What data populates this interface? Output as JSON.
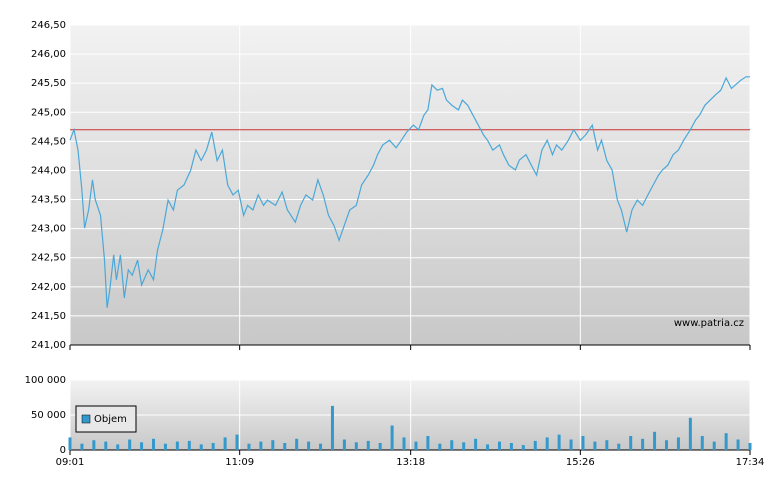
{
  "chart_data": [
    {
      "type": "line",
      "x": [
        541,
        544,
        547,
        550,
        552,
        555,
        558,
        560,
        564,
        567,
        569,
        571,
        574,
        576,
        579,
        582,
        585,
        588,
        592,
        595,
        600,
        604,
        607,
        611,
        615,
        619,
        622,
        627,
        632,
        636,
        640,
        644,
        648,
        652,
        656,
        660,
        664,
        668,
        672,
        675,
        679,
        683,
        687,
        690,
        696,
        701,
        705,
        711,
        715,
        719,
        724,
        728,
        732,
        736,
        740,
        744,
        748,
        752,
        757,
        761,
        766,
        770,
        773,
        777,
        782,
        787,
        791,
        795,
        800,
        804,
        808,
        811,
        814,
        818,
        822,
        825,
        829,
        834,
        837,
        841,
        845,
        849,
        853,
        856,
        860,
        865,
        868,
        872,
        877,
        880,
        885,
        889,
        893,
        897,
        901,
        905,
        908,
        912,
        917,
        921,
        926,
        930,
        935,
        939,
        942,
        946,
        950,
        954,
        957,
        961,
        965,
        969,
        973,
        977,
        981,
        985,
        988,
        992,
        996,
        1000,
        1004,
        1009,
        1013,
        1016,
        1020,
        1024,
        1028,
        1032,
        1036,
        1040,
        1043,
        1047,
        1051,
        1054
      ],
      "values": [
        244.52,
        244.7,
        244.35,
        243.66,
        243.01,
        243.32,
        243.84,
        243.5,
        243.23,
        242.46,
        241.64,
        241.95,
        242.55,
        242.12,
        242.55,
        241.81,
        242.29,
        242.2,
        242.46,
        242.03,
        242.29,
        242.12,
        242.63,
        242.98,
        243.49,
        243.32,
        243.66,
        243.75,
        244.0,
        244.35,
        244.17,
        244.35,
        244.66,
        244.17,
        244.35,
        243.75,
        243.58,
        243.66,
        243.23,
        243.4,
        243.32,
        243.58,
        243.4,
        243.49,
        243.4,
        243.63,
        243.32,
        243.11,
        243.4,
        243.58,
        243.49,
        243.84,
        243.58,
        243.23,
        243.06,
        242.8,
        243.06,
        243.32,
        243.4,
        243.75,
        243.92,
        244.09,
        244.27,
        244.44,
        244.52,
        244.39,
        244.52,
        244.66,
        244.78,
        244.7,
        244.95,
        245.04,
        245.47,
        245.38,
        245.41,
        245.21,
        245.12,
        245.04,
        245.21,
        245.12,
        244.95,
        244.78,
        244.61,
        244.52,
        244.35,
        244.44,
        244.27,
        244.09,
        244.01,
        244.18,
        244.27,
        244.09,
        243.92,
        244.35,
        244.52,
        244.27,
        244.44,
        244.35,
        244.52,
        244.7,
        244.52,
        244.61,
        244.78,
        244.35,
        244.52,
        244.17,
        244.01,
        243.49,
        243.32,
        242.94,
        243.32,
        243.49,
        243.4,
        243.58,
        243.75,
        243.92,
        244.01,
        244.09,
        244.27,
        244.35,
        244.52,
        244.7,
        244.87,
        244.95,
        245.12,
        245.21,
        245.3,
        245.38,
        245.59,
        245.41,
        245.47,
        245.55,
        245.61,
        245.61
      ],
      "color": "#4aa8d8",
      "xlim": [
        541,
        1054
      ],
      "ylim": [
        241,
        246.5
      ],
      "yticks": [
        {
          "value": 241,
          "label": "241,00"
        },
        {
          "value": 241.5,
          "label": "241,50"
        },
        {
          "value": 242,
          "label": "242,00"
        },
        {
          "value": 242.5,
          "label": "242,50"
        },
        {
          "value": 243,
          "label": "243,00"
        },
        {
          "value": 243.5,
          "label": "243,50"
        },
        {
          "value": 244,
          "label": "244,00"
        },
        {
          "value": 244.5,
          "label": "244,50"
        },
        {
          "value": 245,
          "label": "245,00"
        },
        {
          "value": 245.5,
          "label": "245,50"
        },
        {
          "value": 246,
          "label": "246,00"
        },
        {
          "value": 246.5,
          "label": "246,50"
        }
      ],
      "reference_value": 244.7,
      "reference_color": "#cc3333",
      "annotation": "www.patria.cz",
      "grid": true
    },
    {
      "type": "bar",
      "x": [
        541,
        550,
        559,
        568,
        577,
        586,
        595,
        604,
        613,
        622,
        631,
        640,
        649,
        658,
        667,
        676,
        685,
        694,
        703,
        712,
        721,
        730,
        739,
        748,
        757,
        766,
        775,
        784,
        793,
        802,
        811,
        820,
        829,
        838,
        847,
        856,
        865,
        874,
        883,
        892,
        901,
        910,
        919,
        928,
        937,
        946,
        955,
        964,
        973,
        982,
        991,
        1000,
        1009,
        1018,
        1027,
        1036,
        1045,
        1054
      ],
      "series": [
        {
          "name": "Objem",
          "color": "#3399cc",
          "values": [
            18000,
            9000,
            14000,
            12000,
            8000,
            15000,
            11000,
            16000,
            9000,
            12000,
            13000,
            8000,
            10000,
            18000,
            22000,
            9000,
            12000,
            14000,
            10000,
            16000,
            12000,
            9000,
            63000,
            15000,
            11000,
            13000,
            10000,
            35000,
            18000,
            12000,
            20000,
            9000,
            14000,
            11000,
            16000,
            8000,
            12000,
            10000,
            7000,
            13000,
            18000,
            22000,
            15000,
            20000,
            12000,
            14000,
            9000,
            20000,
            16000,
            26000,
            14000,
            18000,
            46000,
            20000,
            12000,
            24000,
            15000,
            10000
          ]
        }
      ],
      "xlim": [
        541,
        1054
      ],
      "xticks": [
        {
          "value": 541,
          "label": "09:01"
        },
        {
          "value": 669,
          "label": "11:09"
        },
        {
          "value": 798,
          "label": "13:18"
        },
        {
          "value": 926,
          "label": "15:26"
        },
        {
          "value": 1054,
          "label": "17:34"
        }
      ],
      "ylim": [
        0,
        100000
      ],
      "yticks": [
        0,
        {
          "value": 50000,
          "label": "50 000"
        },
        {
          "value": 100000,
          "label": "100 000"
        }
      ],
      "legend": "upper left",
      "grid": true
    }
  ]
}
